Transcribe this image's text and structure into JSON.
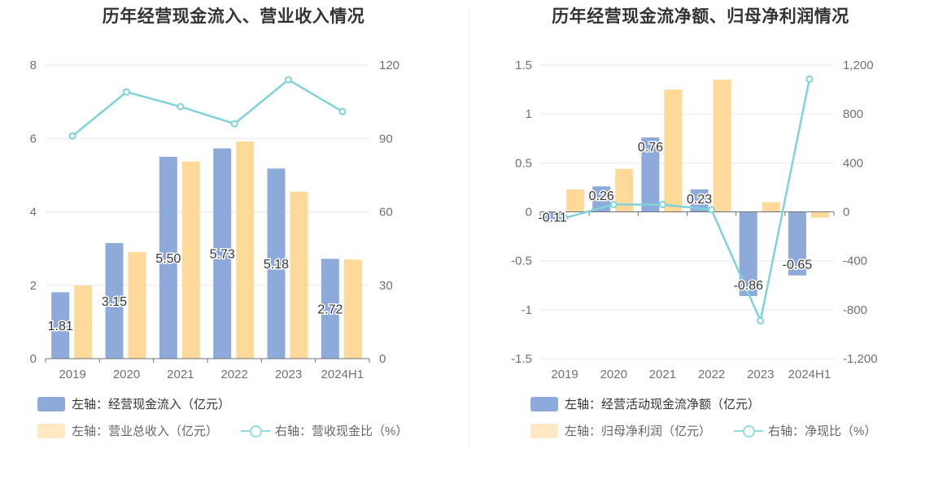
{
  "chart_data": [
    {
      "type": "bar",
      "title": "历年经营现金流入、营业收入情况",
      "categories": [
        "2019",
        "2020",
        "2021",
        "2022",
        "2023",
        "2024H1"
      ],
      "left_axis": {
        "min": 0,
        "max": 8,
        "ticks": [
          0,
          2,
          4,
          6,
          8
        ],
        "tick_labels": [
          "0",
          "2",
          "4",
          "6",
          "8"
        ]
      },
      "right_axis": {
        "min": 0,
        "max": 120,
        "ticks": [
          0,
          30,
          60,
          90,
          120
        ],
        "tick_labels": [
          "0",
          "30",
          "60",
          "90",
          "120"
        ]
      },
      "series": [
        {
          "name": "左轴：经营现金流入（亿元）",
          "kind": "bar",
          "axis": "left",
          "color": "#8eaadb",
          "values": [
            1.81,
            3.15,
            5.5,
            5.73,
            5.18,
            2.72
          ],
          "labels": [
            "1.81",
            "3.15",
            "5.50",
            "5.73",
            "5.18",
            "2.72"
          ]
        },
        {
          "name": "左轴：营业总收入（亿元）",
          "kind": "bar",
          "axis": "left",
          "color": "#ffd99a",
          "values": [
            1.99,
            2.9,
            5.37,
            5.92,
            4.55,
            2.7
          ]
        },
        {
          "name": "右轴：营收现金比（%）",
          "kind": "line",
          "axis": "right",
          "color": "#7fd3d8",
          "values": [
            91,
            109,
            103,
            96,
            114,
            101
          ]
        }
      ],
      "grid": true,
      "legend_position": "bottom-left"
    },
    {
      "type": "bar",
      "title": "历年经营现金流净额、归母净利润情况",
      "categories": [
        "2019",
        "2020",
        "2021",
        "2022",
        "2023",
        "2024H1"
      ],
      "left_axis": {
        "min": -1.5,
        "max": 1.5,
        "ticks": [
          -1.5,
          -1,
          -0.5,
          0,
          0.5,
          1,
          1.5
        ],
        "tick_labels": [
          "-1.5",
          "-1",
          "-0.5",
          "0",
          "0.5",
          "1",
          "1.5"
        ]
      },
      "right_axis": {
        "min": -1200,
        "max": 1200,
        "ticks": [
          -1200,
          -800,
          -400,
          0,
          400,
          800,
          1200
        ],
        "tick_labels": [
          "-1,200",
          "-800",
          "-400",
          "0",
          "400",
          "800",
          "1,200"
        ]
      },
      "series": [
        {
          "name": "左轴：经营活动现金流净额（亿元）",
          "kind": "bar",
          "axis": "left",
          "color": "#8eaadb",
          "values": [
            -0.11,
            0.26,
            0.76,
            0.23,
            -0.86,
            -0.65
          ],
          "labels": [
            "-0.11",
            "0.26",
            "0.76",
            "0.23",
            "-0.86",
            "-0.65"
          ]
        },
        {
          "name": "左轴：归母净利润（亿元）",
          "kind": "bar",
          "axis": "left",
          "color": "#ffd99a",
          "values": [
            0.23,
            0.44,
            1.25,
            1.35,
            0.1,
            -0.06
          ]
        },
        {
          "name": "右轴：净现比（%）",
          "kind": "line",
          "axis": "right",
          "color": "#7fd3d8",
          "values": [
            -50,
            60,
            60,
            17,
            -890,
            1085
          ]
        }
      ],
      "grid": true,
      "legend_position": "bottom-left"
    }
  ]
}
